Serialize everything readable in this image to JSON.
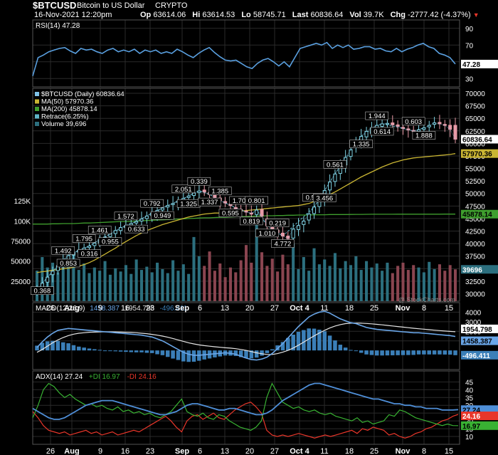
{
  "header": {
    "symbol": "$BTCUSD",
    "name": "Bitcoin to US Dollar",
    "exchange": "CRYPTO",
    "date": "16-Nov-2021 12:20pm",
    "op_label": "Op",
    "op": "63614.06",
    "hi_label": "Hi",
    "hi": "63614.53",
    "lo_label": "Lo",
    "lo": "58745.71",
    "last_label": "Last",
    "last": "60836.64",
    "vol_label": "Vol",
    "vol": "39.7K",
    "chg_label": "Chg",
    "chg": "-2777.42 (-4.37%)",
    "watermark": "@ StockCharts.com"
  },
  "colors": {
    "background": "#000000",
    "grid": "#2a2a2a",
    "panel_border": "#555555",
    "price_line": "#7fc3e8",
    "ma50": "#c9b533",
    "ma200": "#3f9e2e",
    "retrace": "#5fb5c7",
    "up_candle": "#7ed2e2",
    "down_candle": "#e79aa6",
    "vol_up": "#2c6f7e",
    "vol_down": "#8a4550",
    "rsi": "#5aa0e0",
    "macd": "#6aa6e8",
    "signal": "#e6e6e6",
    "hist": "#3b7fb8",
    "adx": "#4f8fd8",
    "pdi": "#39b233",
    "mdi": "#e8362a",
    "down_arrow": "#e8362a"
  },
  "chart_data": [
    {
      "id": "rsi",
      "type": "line",
      "legend": "RSI(14) 47.28",
      "ylim": [
        20,
        100
      ],
      "yticks": [
        30,
        50,
        70,
        90
      ],
      "last_value": "47.28",
      "values": [
        33,
        55,
        58,
        62,
        64,
        66,
        67,
        63,
        60,
        66,
        64,
        65,
        62,
        60,
        64,
        66,
        62,
        64,
        62,
        65,
        60,
        64,
        62,
        64,
        60,
        62,
        60,
        65,
        62,
        58,
        55,
        60,
        64,
        67,
        61,
        56,
        52,
        51,
        52,
        48,
        44,
        42,
        48,
        52,
        54,
        50,
        45,
        50,
        44,
        55,
        66,
        68,
        70,
        72,
        70,
        73,
        66,
        70,
        67,
        70,
        65,
        66,
        68,
        68,
        65,
        66,
        63,
        62,
        66,
        62,
        65,
        67,
        70,
        72,
        68,
        66,
        60,
        58,
        55,
        47.28
      ]
    },
    {
      "id": "price",
      "type": "candlestick",
      "legend": [
        "$BTCUSD (Daily) 60836.64",
        "MA(50) 57970.36",
        "MA(200) 45878.14",
        "Retrace(6.25%)",
        "Volume 39,696"
      ],
      "ylim": [
        28500,
        71000
      ],
      "yticks": [
        30000,
        32500,
        35000,
        37500,
        40000,
        42500,
        45000,
        47500,
        50000,
        52500,
        55000,
        57500,
        60000,
        62500,
        65000,
        67500,
        70000
      ],
      "close": [
        30800,
        32100,
        33300,
        34500,
        35600,
        36700,
        37600,
        38200,
        38700,
        39100,
        39500,
        40100,
        40800,
        41300,
        41900,
        42600,
        43200,
        43600,
        44000,
        44400,
        44900,
        45500,
        46100,
        46600,
        47100,
        47600,
        48000,
        48500,
        49000,
        49500,
        50100,
        50500,
        50300,
        49800,
        49200,
        48600,
        48100,
        47600,
        47100,
        46700,
        46300,
        46000,
        46700,
        45500,
        43600,
        42800,
        42200,
        41500,
        41000,
        42900,
        43600,
        44500,
        45900,
        47300,
        48900,
        50600,
        52300,
        53900,
        55600,
        57200,
        58700,
        60100,
        61400,
        62400,
        63100,
        63600,
        63900,
        64000,
        63700,
        63400,
        63000,
        62700,
        62500,
        62700,
        63100,
        63600,
        64100,
        63900,
        63600,
        62800,
        60836.64
      ],
      "open": [
        30400,
        31100,
        32300,
        33800,
        34600,
        35800,
        36800,
        37700,
        38300,
        38700,
        39200,
        39600,
        40100,
        40800,
        41400,
        42000,
        42600,
        43200,
        43700,
        44100,
        44500,
        45000,
        45600,
        46100,
        46700,
        47300,
        47900,
        48200,
        48600,
        49200,
        49600,
        50200,
        50700,
        50200,
        49700,
        49100,
        48400,
        47900,
        47200,
        46800,
        46500,
        46100,
        45800,
        46800,
        44900,
        43500,
        42700,
        42100,
        41500,
        41100,
        42800,
        43800,
        44700,
        46000,
        47400,
        49000,
        50700,
        52400,
        54000,
        55700,
        57400,
        59200,
        60300,
        61300,
        62000,
        62800,
        63400,
        63800,
        64100,
        63700,
        63200,
        62900,
        62600,
        62400,
        62800,
        63300,
        63800,
        64200,
        63800,
        63614.06,
        63614.06
      ],
      "ma50": [
        34200,
        34400,
        34500,
        34700,
        34800,
        35000,
        35100,
        35300,
        35500,
        35800,
        36200,
        36700,
        37300,
        37900,
        38500,
        39100,
        39800,
        40400,
        41000,
        41600,
        42100,
        42600,
        43000,
        43400,
        43800,
        44100,
        44400,
        44700,
        45000,
        45300,
        45500,
        45700,
        45900,
        46000,
        46100,
        46100,
        46200,
        46300,
        46400,
        46500,
        46600,
        46700,
        46800,
        46900,
        47000,
        47100,
        47200,
        47300,
        47400,
        47500,
        47600,
        47800,
        48000,
        48400,
        48800,
        49300,
        49800,
        50300,
        50900,
        51500,
        52100,
        52700,
        53300,
        53800,
        54300,
        54800,
        55300,
        55700,
        56100,
        56400,
        56700,
        56900,
        57100,
        57200,
        57300,
        57400,
        57500,
        57600,
        57700,
        57800,
        57970.36
      ],
      "ma200": [
        43900,
        43900,
        43900,
        43950,
        43950,
        44000,
        44000,
        44000,
        44050,
        44100,
        44100,
        44150,
        44200,
        44250,
        44300,
        44350,
        44400,
        44400,
        44450,
        44500,
        44550,
        44600,
        44650,
        44700,
        44750,
        44800,
        44850,
        44900,
        44950,
        45000,
        45050,
        45100,
        45150,
        45150,
        45200,
        45250,
        45250,
        45300,
        45350,
        45400,
        45400,
        45450,
        45500,
        45500,
        45550,
        45550,
        45600,
        45600,
        45650,
        45650,
        45700,
        45700,
        45700,
        45750,
        45750,
        45750,
        45800,
        45800,
        45800,
        45800,
        45810,
        45820,
        45830,
        45840,
        45850,
        45850,
        45855,
        45860,
        45860,
        45865,
        45865,
        45870,
        45870,
        45872,
        45874,
        45875,
        45876,
        45876,
        45877,
        45878,
        45878.14
      ],
      "volume_scale_max": 150000,
      "volume_ticks": [
        25000,
        50000,
        75000,
        100000,
        125000
      ],
      "volume_tick_labels": [
        "25000",
        "50000",
        "75000",
        "100K",
        "125K"
      ],
      "volume": [
        38000,
        55000,
        42000,
        48000,
        36000,
        52000,
        44000,
        61000,
        39000,
        47000,
        35000,
        42000,
        38000,
        50000,
        33000,
        41000,
        37000,
        45000,
        34000,
        52000,
        39000,
        43000,
        36000,
        48000,
        40000,
        35000,
        51000,
        38000,
        46000,
        34000,
        80000,
        56000,
        44000,
        62000,
        38000,
        47000,
        30000,
        42000,
        36000,
        51000,
        70000,
        48000,
        96000,
        61000,
        44000,
        53000,
        37000,
        58000,
        46000,
        72000,
        40000,
        55000,
        38000,
        66000,
        46000,
        52000,
        44000,
        60000,
        41000,
        50000,
        45000,
        56000,
        39000,
        50000,
        42000,
        47000,
        38000,
        48000,
        35000,
        44000,
        48000,
        39000,
        45000,
        42000,
        36000,
        49000,
        40000,
        46000,
        38000,
        45000,
        39696
      ],
      "last_value": "60836.64",
      "ma50_value": "57970.36",
      "ma200_value": "45878.14",
      "volume_value": "39696",
      "retrace_labels": [
        {
          "i": 1,
          "text": "0.368"
        },
        {
          "i": 5,
          "text": "1.492"
        },
        {
          "i": 6,
          "text": "0.853"
        },
        {
          "i": 9,
          "text": "1.795"
        },
        {
          "i": 10,
          "text": "0.316"
        },
        {
          "i": 12,
          "text": "1.461"
        },
        {
          "i": 14,
          "text": "0.955"
        },
        {
          "i": 17,
          "text": "1.572"
        },
        {
          "i": 19,
          "text": "0.633"
        },
        {
          "i": 22,
          "text": "0.792"
        },
        {
          "i": 24,
          "text": "0.949"
        },
        {
          "i": 28,
          "text": "2.051"
        },
        {
          "i": 29,
          "text": "1.325"
        },
        {
          "i": 31,
          "text": "0.339"
        },
        {
          "i": 33,
          "text": "1.337"
        },
        {
          "i": 35,
          "text": "1.385"
        },
        {
          "i": 37,
          "text": "0.595"
        },
        {
          "i": 39,
          "text": "1.707"
        },
        {
          "i": 41,
          "text": "0.819"
        },
        {
          "i": 42,
          "text": "0.801"
        },
        {
          "i": 44,
          "text": "1.010"
        },
        {
          "i": 46,
          "text": "0.219"
        },
        {
          "i": 47,
          "text": "4.772"
        },
        {
          "i": 53,
          "text": "0.578"
        },
        {
          "i": 55,
          "text": "3.456"
        },
        {
          "i": 57,
          "text": "0.561"
        },
        {
          "i": 62,
          "text": "1.335"
        },
        {
          "i": 65,
          "text": "1.944"
        },
        {
          "i": 66,
          "text": "0.614"
        },
        {
          "i": 72,
          "text": "0.603"
        },
        {
          "i": 74,
          "text": "1.888"
        }
      ]
    },
    {
      "id": "macd",
      "type": "line",
      "legend": [
        "MACD(12,26,9)",
        "1458.387",
        "1954.798",
        "-496.411"
      ],
      "ylim": [
        -2000,
        5000
      ],
      "yticks": [
        1000,
        2000,
        3000,
        4000
      ],
      "macd_value": "1458.387",
      "signal_value": "1954.798",
      "hist_value": "-496.411",
      "macd": [
        300,
        900,
        1400,
        1800,
        2100,
        2200,
        2300,
        2250,
        2200,
        2150,
        2100,
        2050,
        2000,
        1950,
        1900,
        1850,
        1800,
        1750,
        1700,
        1650,
        1600,
        1500,
        1400,
        1200,
        1000,
        700,
        400,
        100,
        -200,
        -400,
        -500,
        -500,
        -450,
        -400,
        -350,
        -300,
        -250,
        -300,
        -400,
        -600,
        -800,
        -950,
        -1000,
        -900,
        -700,
        -300,
        200,
        700,
        1300,
        1900,
        2500,
        3000,
        3500,
        3800,
        4000,
        4100,
        3900,
        3600,
        3300,
        3100,
        2900,
        2800,
        2600,
        2400,
        2300,
        2200,
        2150,
        2100,
        2050,
        2000,
        1950,
        1900,
        1850,
        1850,
        1800,
        1750,
        1700,
        1650,
        1600,
        1550,
        1458.387
      ],
      "signal": [
        -200,
        100,
        450,
        800,
        1100,
        1350,
        1550,
        1700,
        1800,
        1850,
        1900,
        1920,
        1940,
        1950,
        1950,
        1940,
        1920,
        1900,
        1880,
        1850,
        1800,
        1750,
        1680,
        1600,
        1500,
        1380,
        1250,
        1100,
        950,
        800,
        680,
        580,
        500,
        440,
        380,
        330,
        280,
        240,
        180,
        100,
        0,
        -120,
        -250,
        -350,
        -420,
        -420,
        -330,
        -180,
        0,
        250,
        550,
        870,
        1200,
        1520,
        1830,
        2100,
        2350,
        2550,
        2700,
        2800,
        2850,
        2860,
        2850,
        2820,
        2780,
        2730,
        2680,
        2620,
        2560,
        2500,
        2440,
        2380,
        2320,
        2270,
        2220,
        2170,
        2120,
        2070,
        2030,
        1990,
        1954.798
      ],
      "hist": [
        500,
        800,
        950,
        1000,
        1000,
        850,
        750,
        550,
        400,
        300,
        200,
        130,
        60,
        0,
        -50,
        -90,
        -120,
        -150,
        -180,
        -200,
        -200,
        -250,
        -280,
        -400,
        -500,
        -680,
        -850,
        -1000,
        -1150,
        -1200,
        -1180,
        -1080,
        -950,
        -840,
        -730,
        -630,
        -530,
        -540,
        -580,
        -700,
        -800,
        -830,
        -750,
        -550,
        -280,
        120,
        530,
        880,
        1300,
        1650,
        1950,
        2130,
        2300,
        2280,
        2170,
        2000,
        1550,
        1050,
        600,
        300,
        50,
        -60,
        -250,
        -420,
        -480,
        -530,
        -530,
        -520,
        -510,
        -500,
        -490,
        -480,
        -470,
        -420,
        -420,
        -420,
        -420,
        -420,
        -430,
        -440,
        -496.411
      ]
    },
    {
      "id": "adx",
      "type": "line",
      "legend": [
        "ADX(14) 27.24",
        "+DI 16.97",
        "-DI 24.16"
      ],
      "ylim": [
        5,
        52
      ],
      "yticks": [
        10,
        15,
        20,
        25,
        30,
        35,
        40,
        45
      ],
      "adx_value": "27.24",
      "pdi_value": "16.97",
      "mdi_value": "24.16",
      "adx": [
        28,
        26,
        24,
        22,
        21,
        21,
        22,
        24,
        26,
        28,
        30,
        31,
        32,
        33,
        33,
        33,
        32,
        31,
        30,
        29,
        28,
        27,
        26,
        25,
        24,
        24,
        25,
        26,
        28,
        30,
        31,
        31,
        30,
        29,
        28,
        27,
        27,
        28,
        28,
        27,
        26,
        25,
        24,
        24,
        25,
        27,
        30,
        33,
        35,
        37,
        39,
        41,
        43,
        44,
        44,
        43,
        42,
        41,
        40,
        39,
        38,
        37,
        36,
        35,
        34,
        34,
        33,
        32,
        31,
        31,
        30,
        30,
        29,
        29,
        28,
        28,
        28,
        27,
        27,
        27,
        27.24
      ],
      "pdi": [
        22,
        30,
        40,
        44,
        42,
        38,
        35,
        37,
        34,
        32,
        30,
        31,
        29,
        30,
        28,
        27,
        29,
        26,
        27,
        25,
        26,
        24,
        25,
        23,
        22,
        24,
        26,
        30,
        34,
        26,
        24,
        23,
        25,
        22,
        21,
        24,
        23,
        20,
        18,
        16,
        15,
        14,
        16,
        20,
        35,
        44,
        38,
        32,
        30,
        28,
        29,
        27,
        26,
        27,
        25,
        24,
        25,
        23,
        22,
        21,
        20,
        22,
        19,
        20,
        18,
        19,
        20,
        24,
        23,
        27,
        26,
        24,
        22,
        21,
        20,
        19,
        18,
        17,
        18,
        17,
        16.97
      ],
      "mdi": [
        26,
        22,
        17,
        14,
        13,
        12,
        13,
        11,
        12,
        13,
        14,
        12,
        13,
        11,
        12,
        13,
        11,
        12,
        13,
        14,
        13,
        15,
        17,
        19,
        21,
        23,
        20,
        16,
        13,
        20,
        23,
        24,
        21,
        23,
        25,
        22,
        21,
        24,
        27,
        29,
        31,
        32,
        29,
        25,
        14,
        11,
        10,
        11,
        10,
        11,
        12,
        11,
        10,
        9,
        10,
        11,
        10,
        11,
        12,
        13,
        14,
        12,
        15,
        14,
        16,
        15,
        14,
        11,
        12,
        10,
        9,
        10,
        12,
        13,
        15,
        16,
        18,
        20,
        21,
        23,
        24.16
      ]
    },
    {
      "id": "xaxis",
      "type": "axis",
      "x_start": "2021-07-21",
      "x_end": "2021-11-16",
      "labels": [
        {
          "text": "26",
          "i": 5
        },
        {
          "text": "Aug",
          "i": 11
        },
        {
          "text": "9",
          "i": 19
        },
        {
          "text": "16",
          "i": 26
        },
        {
          "text": "23",
          "i": 33
        },
        {
          "text": "Sep",
          "i": 42
        },
        {
          "text": "6",
          "i": 47
        },
        {
          "text": "13",
          "i": 54
        },
        {
          "text": "20",
          "i": 61
        },
        {
          "text": "27",
          "i": 68
        },
        {
          "text": "Oct 4",
          "i": 75
        },
        {
          "text": "11",
          "i": 82
        },
        {
          "text": "18",
          "i": 89
        },
        {
          "text": "25",
          "i": 96
        },
        {
          "text": "Nov",
          "i": 104
        },
        {
          "text": "8",
          "i": 110
        },
        {
          "text": "15",
          "i": 117
        }
      ]
    }
  ]
}
